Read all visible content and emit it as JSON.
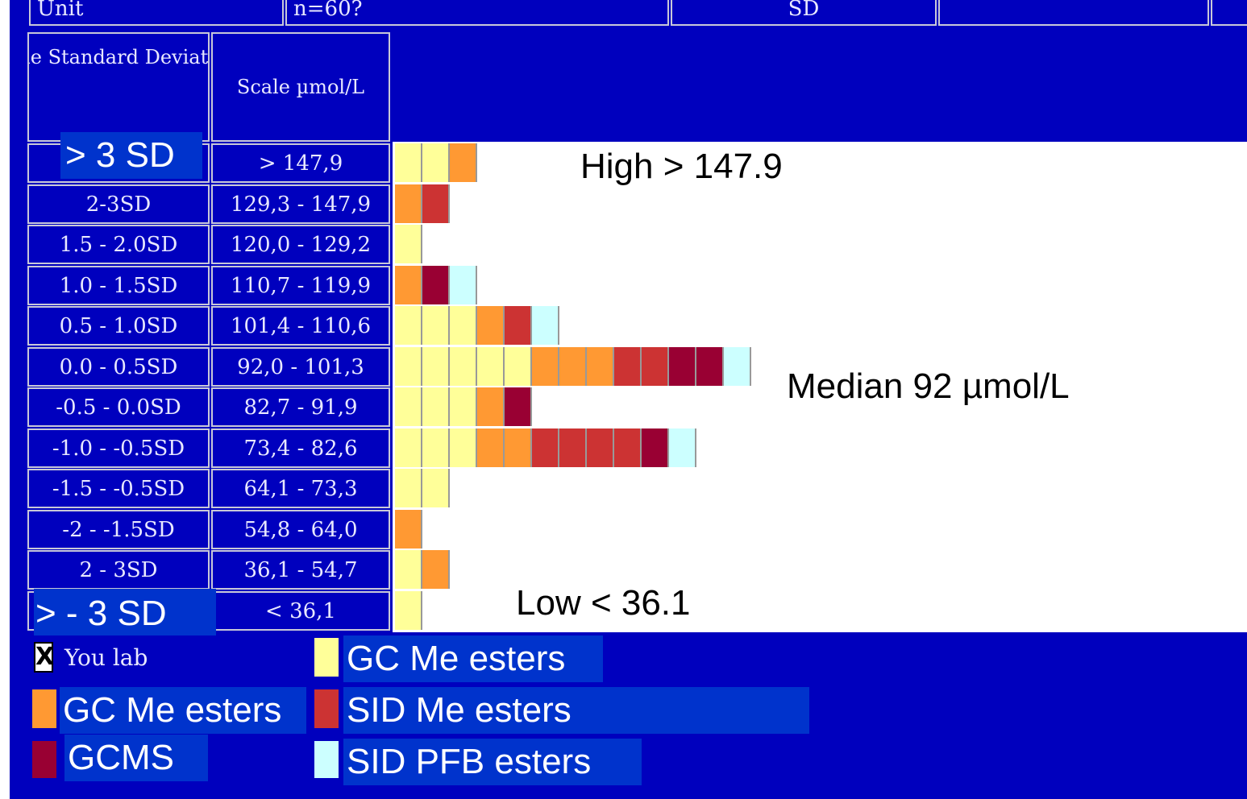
{
  "top_bar": {
    "cells": [
      "Unit",
      "n=60?",
      "SD",
      "",
      ""
    ]
  },
  "table": {
    "header_sd": "Scale Standard Deviations",
    "header_scale": "Scale µmol/L",
    "rows": [
      {
        "sd": "> 3 SD",
        "range": "> 147,9"
      },
      {
        "sd": "2-3SD",
        "range": "129,3 - 147,9"
      },
      {
        "sd": "1.5 - 2.0SD",
        "range": "120,0 - 129,2"
      },
      {
        "sd": "1.0 - 1.5SD",
        "range": "110,7 - 119,9"
      },
      {
        "sd": "0.5 - 1.0SD",
        "range": "101,4 - 110,6"
      },
      {
        "sd": "0.0 - 0.5SD",
        "range": "92,0 - 101,3"
      },
      {
        "sd": "-0.5 - 0.0SD",
        "range": "82,7 - 91,9"
      },
      {
        "sd": "-1.0 - -0.5SD",
        "range": "73,4 - 82,6"
      },
      {
        "sd": "-1.5 - -0.5SD",
        "range": "64,1 - 73,3"
      },
      {
        "sd": "-2 - -1.5SD",
        "range": "54,8 - 64,0"
      },
      {
        "sd": "2 - 3SD",
        "range": "36,1 - 54,7"
      },
      {
        "sd": "> - 3 SD",
        "range": "< 36,1"
      }
    ]
  },
  "annotations": {
    "high": "High > 147.9",
    "median": "Median 92 µmol/L",
    "low": "Low < 36.1"
  },
  "legend": {
    "you_lab": "You lab",
    "items": [
      {
        "key": "gc_yellow",
        "label": "GC Me esters",
        "color": "#FFFF99"
      },
      {
        "key": "gc_orange",
        "label": "GC Me esters",
        "color": "#FF9933"
      },
      {
        "key": "sid_me",
        "label": "SID Me esters",
        "color": "#CC3333"
      },
      {
        "key": "gcms",
        "label": "GCMS",
        "color": "#990033"
      },
      {
        "key": "sid_pfb",
        "label": "SID PFB esters",
        "color": "#CCFFFF"
      }
    ]
  },
  "colors": {
    "background": "#0000BE",
    "legend_box": "#0033CC",
    "gc_yellow": "#FFFF99",
    "gc_orange": "#FF9933",
    "sid_me": "#CC3333",
    "gcms": "#990033",
    "sid_pfb": "#CCFFFF"
  },
  "chart_data": {
    "type": "bar",
    "title": "",
    "xlabel": "",
    "ylabel": "",
    "categories": [
      "> 147,9",
      "129,3 - 147,9",
      "120,0 - 129,2",
      "110,7 - 119,9",
      "101,4 - 110,6",
      "92,0 - 101,3",
      "82,7 - 91,9",
      "73,4 - 82,6",
      "64,1 - 73,3",
      "54,8 - 64,0",
      "36,1 - 54,7",
      "< 36,1"
    ],
    "series": [
      {
        "name": "GC Me esters",
        "key": "gc_yellow",
        "values": [
          2,
          0,
          1,
          0,
          3,
          5,
          3,
          3,
          2,
          0,
          1,
          1
        ]
      },
      {
        "name": "GC Me esters",
        "key": "gc_orange",
        "values": [
          1,
          1,
          0,
          1,
          1,
          3,
          1,
          2,
          0,
          1,
          1,
          0
        ]
      },
      {
        "name": "SID Me esters",
        "key": "sid_me",
        "values": [
          0,
          1,
          0,
          0,
          1,
          2,
          0,
          4,
          0,
          0,
          0,
          0
        ]
      },
      {
        "name": "GCMS",
        "key": "gcms",
        "values": [
          0,
          0,
          0,
          1,
          0,
          2,
          1,
          1,
          0,
          0,
          0,
          0
        ]
      },
      {
        "name": "SID PFB esters",
        "key": "sid_pfb",
        "values": [
          0,
          0,
          0,
          1,
          1,
          1,
          0,
          1,
          0,
          0,
          0,
          0
        ]
      }
    ],
    "stacking": "horizontal-stacked",
    "legend_position": "bottom"
  }
}
